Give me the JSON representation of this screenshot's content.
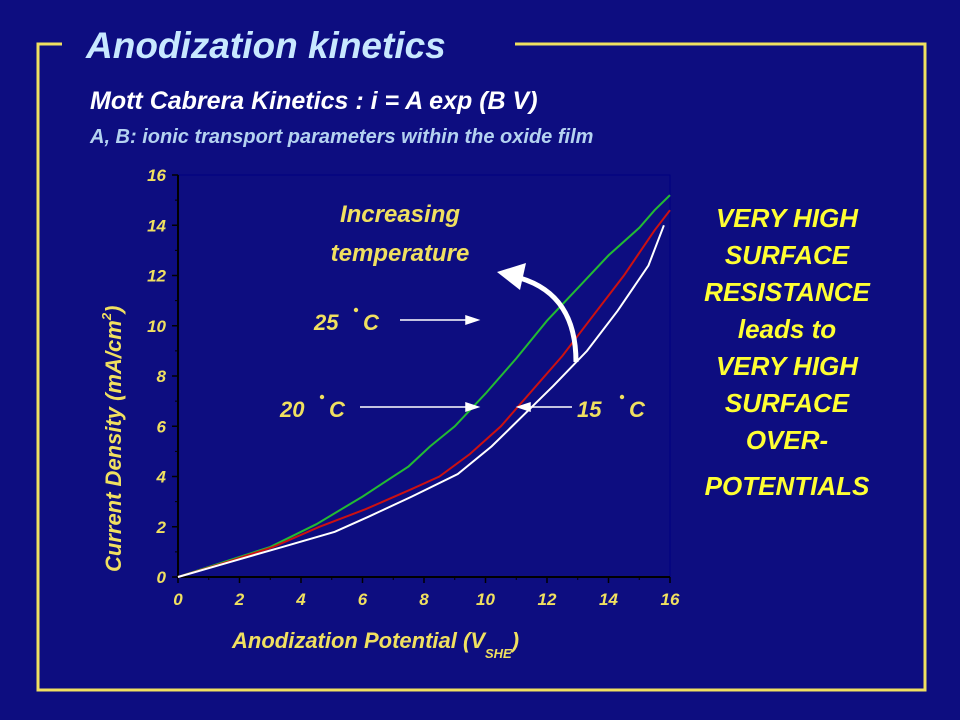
{
  "slide": {
    "title": "Anodization kinetics",
    "subtitle": "Mott Cabrera Kinetics : i = A exp (B V)",
    "caption": "A, B: ionic transport parameters within the oxide film",
    "side_note": [
      "VERY HIGH",
      "SURFACE",
      "RESISTANCE",
      "leads to",
      "VERY HIGH",
      "SURFACE",
      "OVER-",
      "POTENTIALS"
    ],
    "annotation_arrow_text": [
      "Increasing",
      "temperature"
    ],
    "colors": {
      "background": "#0d0d80",
      "frame": "#f0e060",
      "title": "#c8e8ff",
      "subtitle": "#ffffff",
      "caption": "#b4d2f0",
      "axis_text": "#f0e060",
      "side_note": "#ffff33"
    }
  },
  "chart_data": {
    "type": "line",
    "xlabel": {
      "main": "Anodization Potential (V",
      "sub": "SHE",
      "close": ")"
    },
    "ylabel": {
      "main": "Current Density (mA/cm",
      "sup": "2",
      "close": ")"
    },
    "xlim": [
      0,
      16
    ],
    "ylim": [
      0,
      16
    ],
    "x_ticks": [
      "0",
      "2",
      "4",
      "6",
      "8",
      "10",
      "12",
      "14",
      "16"
    ],
    "y_ticks": [
      "0",
      "2",
      "4",
      "6",
      "8",
      "10",
      "12",
      "14",
      "16"
    ],
    "grid": false,
    "series": [
      {
        "name": "25 °C",
        "label_num": "25",
        "label_unit": "C",
        "color": "#22bb33",
        "points": [
          [
            0,
            0
          ],
          [
            1.5,
            0.6
          ],
          [
            3,
            1.2
          ],
          [
            4.5,
            2.1
          ],
          [
            6,
            3.2
          ],
          [
            7.5,
            4.4
          ],
          [
            8.2,
            5.2
          ],
          [
            9,
            6.0
          ],
          [
            10,
            7.3
          ],
          [
            11,
            8.7
          ],
          [
            12,
            10.2
          ],
          [
            13,
            11.5
          ],
          [
            14,
            12.8
          ],
          [
            15,
            13.9
          ],
          [
            15.5,
            14.6
          ],
          [
            16,
            15.2
          ]
        ]
      },
      {
        "name": "20 °C",
        "label_num": "20",
        "label_unit": "C",
        "color": "#cc1111",
        "points": [
          [
            0,
            0
          ],
          [
            1.6,
            0.6
          ],
          [
            3.1,
            1.2
          ],
          [
            4.6,
            2.0
          ],
          [
            6.1,
            2.7
          ],
          [
            7.6,
            3.5
          ],
          [
            8.5,
            4.0
          ],
          [
            9.5,
            4.9
          ],
          [
            10.5,
            6.0
          ],
          [
            11.5,
            7.4
          ],
          [
            12.5,
            8.8
          ],
          [
            13.5,
            10.4
          ],
          [
            14.5,
            12.0
          ],
          [
            15.5,
            13.8
          ],
          [
            16,
            14.6
          ]
        ]
      },
      {
        "name": "15 °C",
        "label_num": "15",
        "label_unit": "C",
        "color": "#ffffff",
        "points": [
          [
            0,
            0
          ],
          [
            1.7,
            0.6
          ],
          [
            3.4,
            1.2
          ],
          [
            5.1,
            1.8
          ],
          [
            6.2,
            2.4
          ],
          [
            7.6,
            3.2
          ],
          [
            9.1,
            4.1
          ],
          [
            10.2,
            5.2
          ],
          [
            11.2,
            6.4
          ],
          [
            12.2,
            7.6
          ],
          [
            13.3,
            9.0
          ],
          [
            14.3,
            10.6
          ],
          [
            15.3,
            12.4
          ],
          [
            15.8,
            14.0
          ]
        ]
      }
    ]
  }
}
